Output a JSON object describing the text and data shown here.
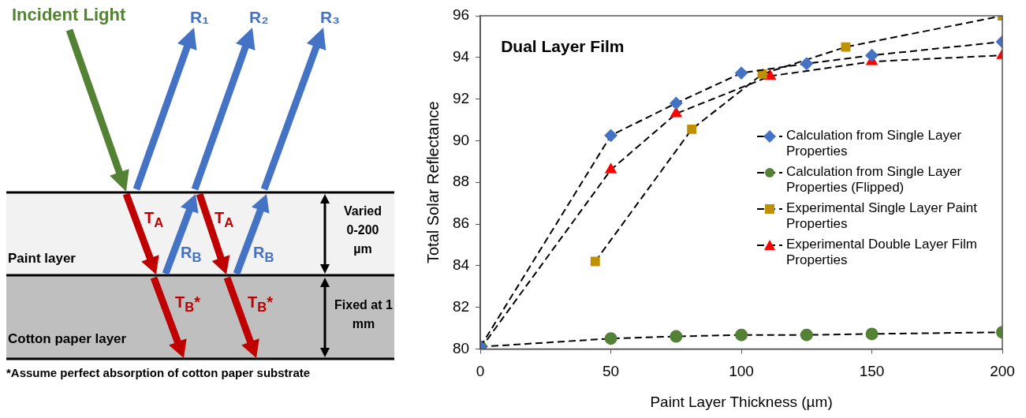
{
  "chart_data": [
    {
      "type": "other",
      "annotations": [
        "Incident Light",
        "R₁",
        "R₂",
        "R₃",
        "T$_{A}$",
        "R$_{B}$",
        "T$_{A}$",
        "R$_{B}$",
        "Varied 0-200 µm",
        "Paint layer",
        "T$_{B}$*",
        "T$_{B}$*",
        "Fixed at 1 mm",
        "Cotton paper layer",
        "*Assume perfect absorption of cotton paper substrate"
      ]
    },
    {
      "type": "line",
      "title": "Dual Layer Film",
      "xlabel": "Paint Layer Thickness (µm)",
      "ylabel": "Total Solar Reflectance",
      "xlim": [
        0,
        200
      ],
      "xticks": [
        0,
        50,
        100,
        150,
        200
      ],
      "ylim": [
        80,
        96
      ],
      "yticks": [
        80,
        82,
        84,
        86,
        88,
        90,
        92,
        94,
        96
      ],
      "grid": false,
      "legend": "right",
      "line_style": "dashed",
      "series": [
        {
          "name": "Calculation from Single Layer Properties",
          "color": "#4472c4",
          "marker": "diamond",
          "x": [
            0,
            50,
            75,
            100,
            125,
            150,
            200
          ],
          "values": [
            80.1,
            90.25,
            91.8,
            93.25,
            93.7,
            94.1,
            94.75
          ]
        },
        {
          "name": "Calculation from Single Layer Properties (Flipped)",
          "color": "#548235",
          "marker": "circle",
          "x": [
            0,
            50,
            75,
            100,
            125,
            150,
            200
          ],
          "values": [
            80.1,
            80.5,
            80.6,
            80.67,
            80.67,
            80.72,
            80.8
          ]
        },
        {
          "name": "Experimental Single Layer Paint Properties",
          "color": "#bf9000",
          "marker": "square",
          "x": [
            44,
            81,
            108,
            140,
            200
          ],
          "values": [
            84.2,
            90.55,
            93.2,
            94.5,
            96.0
          ]
        },
        {
          "name": "Experimental Double Layer Film Properties",
          "color": "#ff0000",
          "marker": "triangle",
          "x": [
            0,
            50,
            75,
            111,
            150,
            200
          ],
          "values": [
            80.0,
            88.6,
            91.3,
            93.1,
            93.8,
            94.1
          ]
        }
      ]
    }
  ]
}
